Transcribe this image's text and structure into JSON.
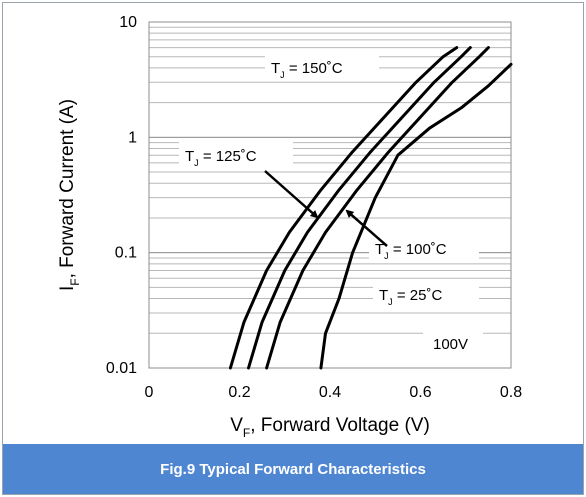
{
  "chart_data": {
    "type": "line",
    "title": "",
    "xlabel": {
      "main": "V",
      "sub": "F",
      "rest": ", Forward Voltage (V)"
    },
    "ylabel": {
      "main": "I",
      "sub": "F",
      "rest": ", Forward Current (A)"
    },
    "xlim": [
      0,
      0.8
    ],
    "ylim": [
      0.01,
      10
    ],
    "yscale": "log",
    "x_ticks": [
      "0",
      "0.2",
      "0.4",
      "0.6",
      "0.8"
    ],
    "y_ticks": [
      "0.01",
      "0.1",
      "1",
      "10"
    ],
    "grid": "horizontal-log",
    "line_color": "#000000",
    "series": [
      {
        "label_main": "T",
        "label_sub": "J",
        "label_rest": " = 150˚C",
        "x": [
          0.18,
          0.21,
          0.26,
          0.31,
          0.38,
          0.45,
          0.52,
          0.59,
          0.65,
          0.68
        ],
        "y": [
          0.01,
          0.025,
          0.07,
          0.15,
          0.35,
          0.75,
          1.5,
          3.0,
          5.0,
          6.0
        ]
      },
      {
        "label_main": "T",
        "label_sub": "J",
        "label_rest": " = 125˚C",
        "x": [
          0.22,
          0.25,
          0.3,
          0.35,
          0.42,
          0.49,
          0.56,
          0.63,
          0.69,
          0.71
        ],
        "y": [
          0.01,
          0.025,
          0.07,
          0.15,
          0.35,
          0.75,
          1.5,
          3.0,
          5.0,
          6.0
        ]
      },
      {
        "label_main": "T",
        "label_sub": "J",
        "label_rest": " = 100˚C",
        "x": [
          0.26,
          0.29,
          0.34,
          0.39,
          0.46,
          0.53,
          0.6,
          0.67,
          0.73,
          0.75
        ],
        "y": [
          0.01,
          0.025,
          0.07,
          0.15,
          0.35,
          0.75,
          1.5,
          3.0,
          5.0,
          6.0
        ]
      },
      {
        "label_main": "T",
        "label_sub": "J",
        "label_rest": " = 25˚C",
        "x": [
          0.38,
          0.39,
          0.42,
          0.45,
          0.5,
          0.55,
          0.62,
          0.69,
          0.75,
          0.8
        ],
        "y": [
          0.01,
          0.02,
          0.04,
          0.1,
          0.3,
          0.7,
          1.2,
          1.8,
          2.8,
          4.3
        ]
      }
    ],
    "annotations": [
      "100V"
    ]
  },
  "caption": "Fig.9 Typical Forward Characteristics"
}
